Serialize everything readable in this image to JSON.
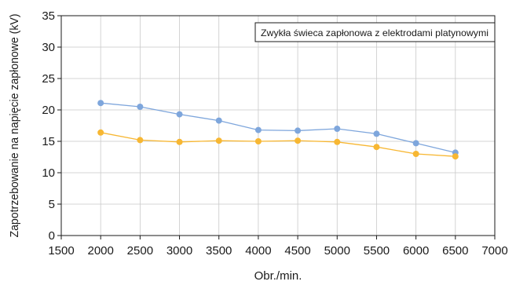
{
  "chart_data": {
    "type": "line",
    "title": "",
    "xlabel": "Obr./min.",
    "ylabel": "Zapotrzebowanie na napięcie zapłonowe (kV)",
    "xlim": [
      1500,
      7000
    ],
    "ylim": [
      0,
      35
    ],
    "x_ticks": [
      1500,
      2000,
      2500,
      3000,
      3500,
      4000,
      4500,
      5000,
      5500,
      6000,
      6500,
      7000
    ],
    "y_ticks": [
      0,
      5,
      10,
      15,
      20,
      25,
      30,
      35
    ],
    "grid": true,
    "x": [
      2000,
      2500,
      3000,
      3500,
      4000,
      4500,
      5000,
      5500,
      6000,
      6500
    ],
    "series": [
      {
        "color": "#7ea6dc",
        "values": [
          21.1,
          20.5,
          19.3,
          18.3,
          16.8,
          16.7,
          17.0,
          16.2,
          14.7,
          13.2
        ]
      },
      {
        "color": "#f7b733",
        "values": [
          16.4,
          15.2,
          14.9,
          15.1,
          15.0,
          15.1,
          14.9,
          14.1,
          13.0,
          12.6
        ]
      }
    ],
    "annotations": [
      {
        "text": "Zwykła świeca zapłonowa z elektrodami platynowymi"
      }
    ]
  }
}
